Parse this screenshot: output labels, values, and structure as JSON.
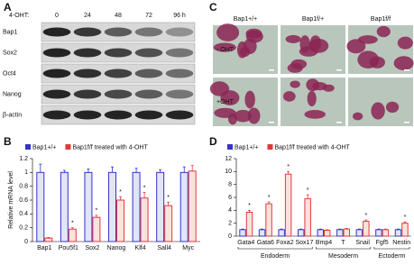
{
  "panels": {
    "A": {
      "label": "A",
      "treatment_label": "4-OHT:",
      "timepoints": [
        "0",
        "24",
        "48",
        "72",
        "96 h"
      ],
      "rows": [
        "Bap1",
        "Sox2",
        "Oct4",
        "Nanog",
        "β-actin"
      ]
    },
    "C": {
      "label": "C",
      "columns": [
        "Bap1+/+",
        "Bap1f/+",
        "Bap1f/f"
      ],
      "rows": [
        "- OHT",
        "+OHT"
      ]
    }
  },
  "chart_data": [
    {
      "type": "bar",
      "panel_label": "B",
      "y_label": "Relative mRNA level",
      "categories": [
        "Bap1",
        "Pou5f1",
        "Sox2",
        "Nanog",
        "Klf4",
        "Sall4",
        "Myc"
      ],
      "series": [
        {
          "name": "Bap1+/+",
          "color": "#3434c8",
          "values": [
            1,
            1,
            1,
            1,
            1,
            1,
            1
          ],
          "errors": [
            0.12,
            0.03,
            0.05,
            0.08,
            0.06,
            0.04,
            0.08
          ]
        },
        {
          "name": "Bap1f/f treated with 4-OHT",
          "color": "#e03a3a",
          "values": [
            0.05,
            0.18,
            0.35,
            0.6,
            0.63,
            0.52,
            1.02
          ],
          "errors": [
            0.01,
            0.02,
            0.03,
            0.05,
            0.08,
            0.05,
            0.08
          ]
        }
      ],
      "ylim": [
        0,
        1.2
      ],
      "yticks": [
        0,
        0.2,
        0.4,
        0.6,
        0.8,
        1,
        1.2
      ],
      "annotations": [
        {
          "category": "Pou5f1",
          "text": "*"
        },
        {
          "category": "Sox2",
          "text": "*"
        },
        {
          "category": "Nanog",
          "text": "*"
        },
        {
          "category": "Klf4",
          "text": "*"
        },
        {
          "category": "Sall4",
          "text": "*"
        }
      ]
    },
    {
      "type": "bar",
      "panel_label": "D",
      "y_label": "Relative mRNA level",
      "categories": [
        "Gata4",
        "Gata6",
        "Foxa2",
        "Sox17",
        "Bmp4",
        "T",
        "Snail",
        "Fgf5",
        "Nestin"
      ],
      "series": [
        {
          "name": "Bap1+/+",
          "color": "#3434c8",
          "values": [
            1,
            1,
            1,
            1,
            1,
            1,
            1,
            1,
            1
          ],
          "errors": [
            0.1,
            0.1,
            0.1,
            0.1,
            0.1,
            0.1,
            0.1,
            0.1,
            0.1
          ]
        },
        {
          "name": "Bap1f/f treated with 4-OHT",
          "color": "#e03a3a",
          "values": [
            3.7,
            5.0,
            9.6,
            5.8,
            0.9,
            1.1,
            2.3,
            1.0,
            2.0
          ],
          "errors": [
            0.3,
            0.3,
            0.4,
            0.6,
            0.1,
            0.1,
            0.2,
            0.1,
            0.2
          ]
        }
      ],
      "ylim": [
        0,
        12
      ],
      "yticks": [
        0,
        2,
        4,
        6,
        8,
        10,
        12
      ],
      "annotations": [
        {
          "category": "Gata4",
          "text": "*"
        },
        {
          "category": "Gata6",
          "text": "*"
        },
        {
          "category": "Foxa2",
          "text": "*"
        },
        {
          "category": "Sox17",
          "text": "*"
        },
        {
          "category": "Snail",
          "text": "*"
        },
        {
          "category": "Nestin",
          "text": "*"
        }
      ],
      "groups": [
        {
          "label": "Endoderm",
          "from": "Gata4",
          "to": "Sox17"
        },
        {
          "label": "Mesoderm",
          "from": "Bmp4",
          "to": "Snail"
        },
        {
          "label": "Ectoderm",
          "from": "Fgf5",
          "to": "Nestin"
        }
      ]
    }
  ]
}
